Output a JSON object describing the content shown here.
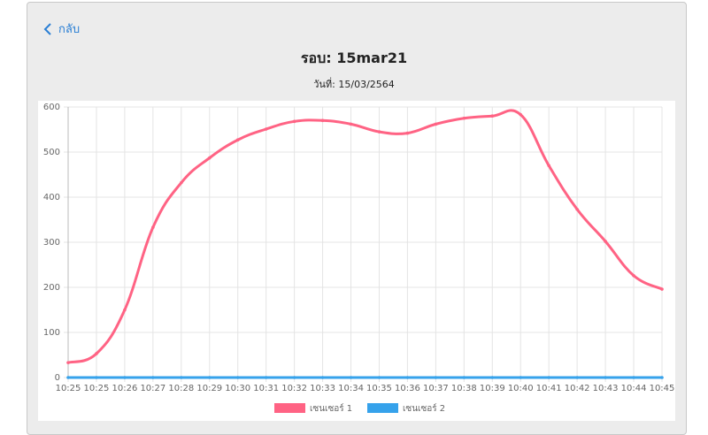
{
  "header": {
    "back": "กลับ",
    "title": "รอบ: 15mar21",
    "date": "วันที่: 15/03/2564"
  },
  "chart_data": {
    "type": "line",
    "categories": [
      "10:25",
      "10:25",
      "10:26",
      "10:27",
      "10:28",
      "10:29",
      "10:30",
      "10:31",
      "10:32",
      "10:33",
      "10:34",
      "10:35",
      "10:36",
      "10:37",
      "10:38",
      "10:39",
      "10:40",
      "10:41",
      "10:42",
      "10:43",
      "10:44",
      "10:45"
    ],
    "series": [
      {
        "name": "เซนเซอร์ 1",
        "color": "#ff6384",
        "values": [
          33,
          53,
          150,
          333,
          432,
          487,
          527,
          551,
          568,
          570,
          562,
          545,
          542,
          562,
          575,
          580,
          583,
          470,
          373,
          302,
          226,
          196
        ]
      },
      {
        "name": "เซนเซอร์ 2",
        "color": "#36a2eb",
        "values": [
          0,
          0,
          0,
          0,
          0,
          0,
          0,
          0,
          0,
          0,
          0,
          0,
          0,
          0,
          0,
          0,
          0,
          0,
          0,
          0,
          0,
          0
        ]
      }
    ],
    "ylim": [
      0,
      600
    ],
    "yticks": [
      0,
      100,
      200,
      300,
      400,
      500,
      600
    ],
    "grid": true,
    "legend": "bottom"
  }
}
